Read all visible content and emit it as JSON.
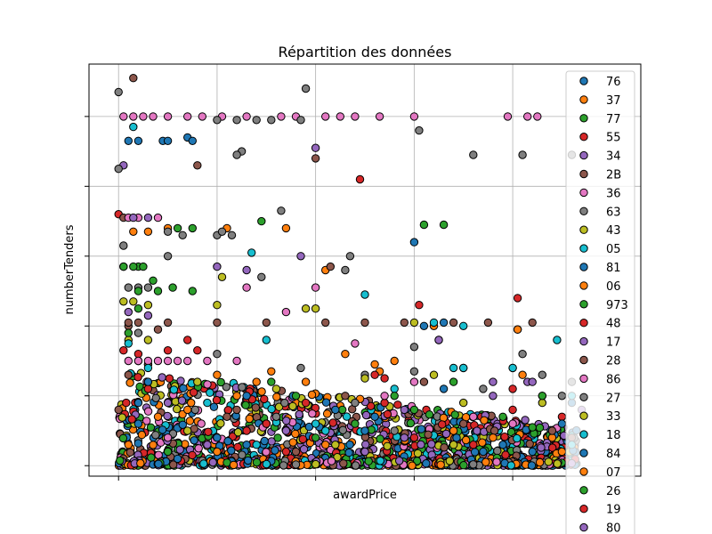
{
  "chart_data": {
    "type": "scatter",
    "title": "Répartition des données",
    "xlabel": "awardPrice",
    "ylabel": "numberTenders",
    "xlim": [
      -0.3,
      5.3
    ],
    "ylim": [
      -0.15,
      5.75
    ],
    "x_ticks": [
      0,
      1,
      2,
      3,
      4
    ],
    "y_ticks": [
      0,
      1,
      2,
      3,
      4,
      5
    ],
    "tick_labels_visible": false,
    "grid": true,
    "legend_position": "right",
    "series": [
      {
        "name": "76",
        "color": "#1f77b4",
        "points": [
          [
            0.1,
            4.65
          ],
          [
            0.2,
            4.65
          ],
          [
            0.45,
            4.65
          ],
          [
            0.5,
            4.65
          ],
          [
            0.7,
            4.7
          ],
          [
            0.75,
            4.65
          ],
          [
            3.0,
            3.2
          ],
          [
            3.1,
            2.0
          ],
          [
            3.3,
            2.05
          ],
          [
            4.3,
            1.0
          ],
          [
            0.2,
            0.6
          ],
          [
            1.3,
            0.3
          ],
          [
            2.5,
            0.5
          ],
          [
            3.7,
            0.2
          ],
          [
            4.6,
            0.9
          ]
        ]
      },
      {
        "name": "37",
        "color": "#ff7f0e",
        "points": [
          [
            0.5,
            3.4
          ],
          [
            1.1,
            3.4
          ],
          [
            1.7,
            3.4
          ],
          [
            2.1,
            2.8
          ],
          [
            3.2,
            2.0
          ],
          [
            4.05,
            1.95
          ],
          [
            0.1,
            0.3
          ],
          [
            1.2,
            1.0
          ],
          [
            2.6,
            1.45
          ],
          [
            3.4,
            0.5
          ],
          [
            4.4,
            0.4
          ],
          [
            0.7,
            0.8
          ],
          [
            2.1,
            0.3
          ],
          [
            4.1,
            1.3
          ],
          [
            1.9,
            1.2
          ]
        ]
      },
      {
        "name": "77",
        "color": "#2ca02c",
        "points": [
          [
            0.05,
            2.85
          ],
          [
            0.2,
            2.85
          ],
          [
            0.35,
            2.65
          ],
          [
            0.55,
            2.55
          ],
          [
            0.75,
            2.5
          ],
          [
            1.45,
            3.5
          ],
          [
            3.1,
            3.45
          ],
          [
            3.3,
            3.45
          ],
          [
            0.2,
            2.25
          ],
          [
            1.8,
            1.0
          ],
          [
            3.0,
            0.8
          ],
          [
            4.2,
            0.55
          ],
          [
            0.5,
            0.2
          ],
          [
            2.4,
            0.6
          ]
        ]
      },
      {
        "name": "55",
        "color": "#d62728",
        "points": [
          [
            2.45,
            4.1
          ],
          [
            0.0,
            3.6
          ],
          [
            0.7,
            1.8
          ],
          [
            3.05,
            2.3
          ],
          [
            4.05,
            2.4
          ],
          [
            4.0,
            1.4
          ],
          [
            1.3,
            0.5
          ],
          [
            2.7,
            0.9
          ],
          [
            3.6,
            0.3
          ],
          [
            0.3,
            1.1
          ],
          [
            1.7,
            0.2
          ],
          [
            4.5,
            0.7
          ]
        ]
      },
      {
        "name": "34",
        "color": "#9467bd",
        "points": [
          [
            0.05,
            4.3
          ],
          [
            2.0,
            4.55
          ],
          [
            1.0,
            2.85
          ],
          [
            1.3,
            2.8
          ],
          [
            3.25,
            1.8
          ],
          [
            4.15,
            1.2
          ],
          [
            0.3,
            1.45
          ],
          [
            1.5,
            0.6
          ],
          [
            2.9,
            0.4
          ],
          [
            3.8,
            1.0
          ],
          [
            4.7,
            0.8
          ],
          [
            0.9,
            0.3
          ]
        ]
      },
      {
        "name": "2B",
        "color": "#8c564b",
        "points": [
          [
            0.15,
            5.55
          ],
          [
            0.8,
            4.3
          ],
          [
            2.0,
            4.4
          ],
          [
            0.05,
            3.55
          ],
          [
            0.1,
            2.0
          ],
          [
            0.5,
            2.05
          ],
          [
            1.0,
            2.05
          ],
          [
            1.5,
            2.05
          ],
          [
            2.1,
            2.05
          ],
          [
            2.5,
            2.05
          ],
          [
            2.9,
            2.05
          ],
          [
            3.4,
            2.05
          ],
          [
            3.75,
            2.05
          ],
          [
            4.2,
            2.05
          ],
          [
            0.3,
            1.45
          ],
          [
            1.1,
            0.7
          ],
          [
            2.3,
            1.0
          ],
          [
            3.5,
            0.6
          ],
          [
            4.6,
            0.4
          ],
          [
            1.8,
            0.2
          ],
          [
            0.0,
            0.8
          ]
        ]
      },
      {
        "name": "36",
        "color": "#e377c2",
        "points": [
          [
            0.05,
            5.0
          ],
          [
            0.15,
            5.0
          ],
          [
            0.25,
            5.0
          ],
          [
            0.35,
            5.0
          ],
          [
            0.5,
            5.0
          ],
          [
            0.7,
            5.0
          ],
          [
            0.85,
            5.0
          ],
          [
            1.05,
            5.0
          ],
          [
            1.3,
            5.0
          ],
          [
            1.65,
            5.0
          ],
          [
            1.8,
            5.0
          ],
          [
            2.1,
            5.0
          ],
          [
            2.25,
            5.0
          ],
          [
            2.4,
            5.0
          ],
          [
            2.65,
            5.0
          ],
          [
            3.0,
            5.0
          ],
          [
            3.95,
            5.0
          ],
          [
            4.15,
            5.0
          ],
          [
            4.25,
            5.0
          ],
          [
            0.1,
            3.55
          ],
          [
            0.2,
            3.55
          ],
          [
            0.4,
            3.55
          ],
          [
            0.1,
            1.5
          ],
          [
            0.3,
            1.5
          ],
          [
            0.6,
            1.5
          ],
          [
            0.9,
            1.5
          ],
          [
            1.2,
            1.5
          ],
          [
            2.4,
            1.75
          ],
          [
            1.3,
            2.55
          ],
          [
            2.0,
            2.55
          ],
          [
            0.5,
            0.4
          ],
          [
            3.0,
            1.2
          ],
          [
            4.0,
            0.6
          ]
        ]
      },
      {
        "name": "63",
        "color": "#7f7f7f",
        "points": [
          [
            0.0,
            5.35
          ],
          [
            1.9,
            5.4
          ],
          [
            1.0,
            4.95
          ],
          [
            1.2,
            4.95
          ],
          [
            1.4,
            4.95
          ],
          [
            1.55,
            4.95
          ],
          [
            1.85,
            4.95
          ],
          [
            1.25,
            4.5
          ],
          [
            1.2,
            4.45
          ],
          [
            3.05,
            4.8
          ],
          [
            0.0,
            4.25
          ],
          [
            1.65,
            3.65
          ],
          [
            0.5,
            3.35
          ],
          [
            0.65,
            3.3
          ],
          [
            1.0,
            3.3
          ],
          [
            1.15,
            3.3
          ],
          [
            0.05,
            3.15
          ],
          [
            0.5,
            3.0
          ],
          [
            2.35,
            3.0
          ],
          [
            2.3,
            2.8
          ],
          [
            1.45,
            2.7
          ],
          [
            3.0,
            1.7
          ],
          [
            3.5,
            1.4
          ],
          [
            3.7,
            1.1
          ],
          [
            4.1,
            1.6
          ],
          [
            4.3,
            1.3
          ],
          [
            0.2,
            1.9
          ],
          [
            1.0,
            1.6
          ],
          [
            2.5,
            1.3
          ],
          [
            1.6,
            0.7
          ],
          [
            2.8,
            0.5
          ],
          [
            4.5,
            1.0
          ],
          [
            3.6,
            4.45
          ],
          [
            4.1,
            4.45
          ],
          [
            4.6,
            4.45
          ]
        ]
      },
      {
        "name": "43",
        "color": "#bcbd22",
        "points": [
          [
            0.1,
            1.8
          ],
          [
            0.3,
            1.8
          ],
          [
            1.05,
            2.7
          ],
          [
            1.9,
            2.25
          ],
          [
            2.5,
            1.25
          ],
          [
            3.5,
            0.9
          ],
          [
            0.7,
            0.5
          ],
          [
            1.6,
            1.1
          ],
          [
            2.2,
            0.3
          ],
          [
            4.3,
            0.9
          ],
          [
            3.2,
            1.3
          ]
        ]
      },
      {
        "name": "05",
        "color": "#17becf",
        "points": [
          [
            0.15,
            4.85
          ],
          [
            1.35,
            3.05
          ],
          [
            2.5,
            2.45
          ],
          [
            3.2,
            2.05
          ],
          [
            3.5,
            2.0
          ],
          [
            4.45,
            1.8
          ],
          [
            3.5,
            1.4
          ],
          [
            4.0,
            1.4
          ],
          [
            0.2,
            1.5
          ],
          [
            0.9,
            0.9
          ],
          [
            2.0,
            0.6
          ],
          [
            2.8,
            1.1
          ],
          [
            4.6,
            0.3
          ],
          [
            1.4,
            0.3
          ]
        ]
      },
      {
        "name": "81",
        "color": "#1f77b4",
        "points": [
          [
            0.3,
            1.2
          ],
          [
            1.0,
            0.4
          ],
          [
            2.2,
            0.8
          ],
          [
            3.3,
            1.1
          ],
          [
            4.2,
            0.2
          ],
          [
            0.6,
            0.1
          ]
        ]
      },
      {
        "name": "06",
        "color": "#ff7f0e",
        "points": [
          [
            1.0,
            1.3
          ],
          [
            1.4,
            1.2
          ],
          [
            2.3,
            1.6
          ],
          [
            2.65,
            1.35
          ],
          [
            0.4,
            0.7
          ],
          [
            3.8,
            0.4
          ],
          [
            4.5,
            0.2
          ]
        ]
      },
      {
        "name": "973",
        "color": "#2ca02c",
        "points": [
          [
            0.05,
            2.85
          ],
          [
            0.15,
            2.85
          ],
          [
            0.25,
            2.85
          ],
          [
            0.6,
            3.4
          ],
          [
            0.75,
            3.4
          ],
          [
            0.1,
            1.9
          ],
          [
            2.8,
            1.0
          ],
          [
            3.9,
            0.7
          ]
        ]
      },
      {
        "name": "48",
        "color": "#d62728",
        "points": [
          [
            0.2,
            1.6
          ],
          [
            0.8,
            1.65
          ],
          [
            1.9,
            0.9
          ],
          [
            2.6,
            1.3
          ],
          [
            3.0,
            0.4
          ],
          [
            4.0,
            1.1
          ]
        ]
      },
      {
        "name": "17",
        "color": "#9467bd",
        "points": [
          [
            0.15,
            3.55
          ],
          [
            0.3,
            3.55
          ],
          [
            3.25,
            1.8
          ],
          [
            4.2,
            1.2
          ],
          [
            0.5,
            0.9
          ],
          [
            1.7,
            0.5
          ],
          [
            2.9,
            0.8
          ]
        ]
      },
      {
        "name": "28",
        "color": "#8c564b",
        "points": [
          [
            0.1,
            2.05
          ],
          [
            0.2,
            2.05
          ],
          [
            0.4,
            1.95
          ],
          [
            2.15,
            2.85
          ],
          [
            0.1,
            1.3
          ],
          [
            1.2,
            0.8
          ],
          [
            3.1,
            1.2
          ],
          [
            4.4,
            0.5
          ]
        ]
      },
      {
        "name": "86",
        "color": "#e377c2",
        "points": [
          [
            0.2,
            1.5
          ],
          [
            0.4,
            1.5
          ],
          [
            0.5,
            1.5
          ],
          [
            0.7,
            1.5
          ],
          [
            1.7,
            2.2
          ],
          [
            2.7,
            1.0
          ],
          [
            3.6,
            0.7
          ]
        ]
      },
      {
        "name": "27",
        "color": "#7f7f7f",
        "points": [
          [
            0.1,
            2.55
          ],
          [
            0.2,
            2.55
          ],
          [
            0.3,
            2.55
          ],
          [
            1.05,
            3.35
          ],
          [
            1.85,
            1.4
          ],
          [
            3.0,
            1.35
          ],
          [
            4.6,
            1.2
          ],
          [
            2.4,
            0.9
          ]
        ]
      },
      {
        "name": "33",
        "color": "#bcbd22",
        "points": [
          [
            0.05,
            2.35
          ],
          [
            0.15,
            2.35
          ],
          [
            0.3,
            2.3
          ],
          [
            1.0,
            2.3
          ],
          [
            2.0,
            2.25
          ],
          [
            3.0,
            2.05
          ],
          [
            0.8,
            1.2
          ],
          [
            3.4,
            0.3
          ]
        ]
      },
      {
        "name": "18",
        "color": "#17becf",
        "points": [
          [
            0.1,
            1.75
          ],
          [
            0.3,
            1.4
          ],
          [
            1.5,
            1.8
          ],
          [
            3.4,
            1.4
          ],
          [
            4.6,
            1.0
          ],
          [
            2.1,
            0.5
          ]
        ]
      },
      {
        "name": "84",
        "color": "#1f77b4",
        "points": [
          [
            0.2,
            0.9
          ],
          [
            1.3,
            1.0
          ],
          [
            2.6,
            0.7
          ],
          [
            3.9,
            0.3
          ],
          [
            4.5,
            0.6
          ]
        ]
      },
      {
        "name": "07",
        "color": "#ff7f0e",
        "points": [
          [
            0.15,
            3.35
          ],
          [
            0.3,
            3.35
          ],
          [
            1.55,
            1.35
          ],
          [
            2.8,
            1.5
          ],
          [
            4.05,
            1.95
          ],
          [
            1.0,
            0.2
          ]
        ]
      },
      {
        "name": "26",
        "color": "#2ca02c",
        "points": [
          [
            0.2,
            2.5
          ],
          [
            0.4,
            2.5
          ],
          [
            1.55,
            1.2
          ],
          [
            3.4,
            1.2
          ],
          [
            4.3,
            1.0
          ],
          [
            2.0,
            0.4
          ]
        ]
      },
      {
        "name": "19",
        "color": "#d62728",
        "points": [
          [
            0.05,
            1.65
          ],
          [
            0.5,
            1.65
          ],
          [
            2.7,
            1.25
          ],
          [
            4.0,
            0.8
          ],
          [
            1.5,
            0.6
          ]
        ]
      },
      {
        "name": "80",
        "color": "#9467bd",
        "points": [
          [
            0.1,
            2.2
          ],
          [
            0.3,
            2.15
          ],
          [
            1.85,
            3.0
          ],
          [
            3.8,
            1.2
          ],
          [
            2.5,
            0.2
          ]
        ]
      }
    ]
  }
}
